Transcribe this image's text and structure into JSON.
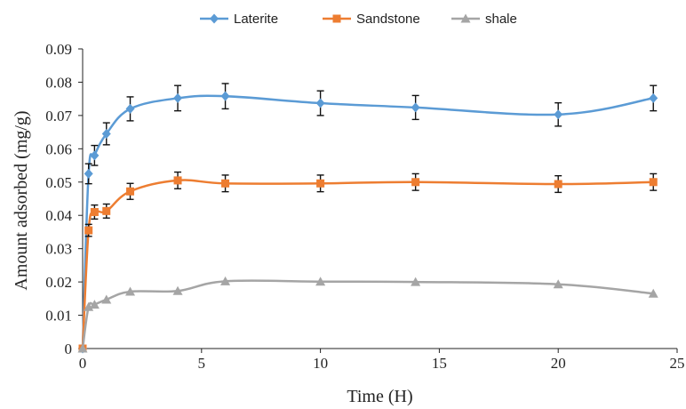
{
  "chart_data": {
    "type": "line",
    "title": "",
    "xlabel": "Time (H)",
    "ylabel": "Amount adsorbed (mg/g)",
    "xlim": [
      0,
      25
    ],
    "ylim": [
      0,
      0.09
    ],
    "xticks": [
      0,
      5,
      10,
      15,
      20,
      25
    ],
    "yticks": [
      0,
      0.01,
      0.02,
      0.03,
      0.04,
      0.05,
      0.06,
      0.07,
      0.08,
      0.09
    ],
    "ytick_labels": [
      "0",
      "0.01",
      "0.02",
      "0.03",
      "0.04",
      "0.05",
      "0.06",
      "0.07",
      "0.08",
      "0.09"
    ],
    "grid": false,
    "legend_position": "top",
    "smoothed": true,
    "series": [
      {
        "name": "Laterite",
        "color": "#5B9BD5",
        "marker": "diamond",
        "x": [
          0,
          0.25,
          0.5,
          1,
          2,
          4,
          6,
          10,
          14,
          20,
          24
        ],
        "y": [
          0,
          0.0525,
          0.058,
          0.0645,
          0.072,
          0.0752,
          0.0758,
          0.0737,
          0.0724,
          0.0703,
          0.0752
        ],
        "error": [
          0,
          0.003,
          0.003,
          0.0033,
          0.0036,
          0.0038,
          0.0038,
          0.0037,
          0.0036,
          0.0035,
          0.0038
        ]
      },
      {
        "name": "Sandstone",
        "color": "#ED7D31",
        "marker": "square",
        "x": [
          0,
          0.25,
          0.5,
          1,
          2,
          4,
          6,
          10,
          14,
          20,
          24
        ],
        "y": [
          0,
          0.0355,
          0.041,
          0.0413,
          0.0472,
          0.0505,
          0.0496,
          0.0496,
          0.05,
          0.0494,
          0.05
        ],
        "error": [
          0,
          0.0018,
          0.0021,
          0.0021,
          0.0024,
          0.0025,
          0.0025,
          0.0025,
          0.0025,
          0.0025,
          0.0025
        ]
      },
      {
        "name": "shale",
        "color": "#A5A5A5",
        "marker": "triangle",
        "x": [
          0,
          0.25,
          0.5,
          1,
          2,
          4,
          6,
          10,
          14,
          20,
          24
        ],
        "y": [
          0,
          0.0125,
          0.0132,
          0.0147,
          0.0171,
          0.0173,
          0.0202,
          0.0201,
          0.02,
          0.0193,
          0.0165
        ]
      }
    ]
  }
}
